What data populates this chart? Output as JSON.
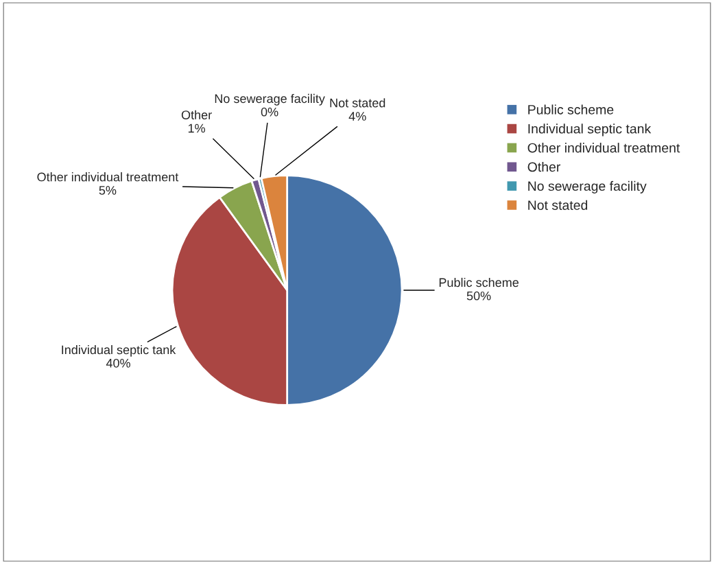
{
  "chart_data": {
    "type": "pie",
    "categories": [
      "Public scheme",
      "Individual septic tank",
      "Other individual treatment",
      "Other",
      "No sewerage facility",
      "Not stated"
    ],
    "values": [
      50,
      40,
      5,
      1,
      0.4,
      3.6
    ],
    "value_labels": [
      "50%",
      "40%",
      "5%",
      "1%",
      "0%",
      "4%"
    ],
    "colors": [
      "#4572a7",
      "#aa4643",
      "#89a54e",
      "#71588f",
      "#4198af",
      "#db843d"
    ],
    "legend": "right"
  }
}
